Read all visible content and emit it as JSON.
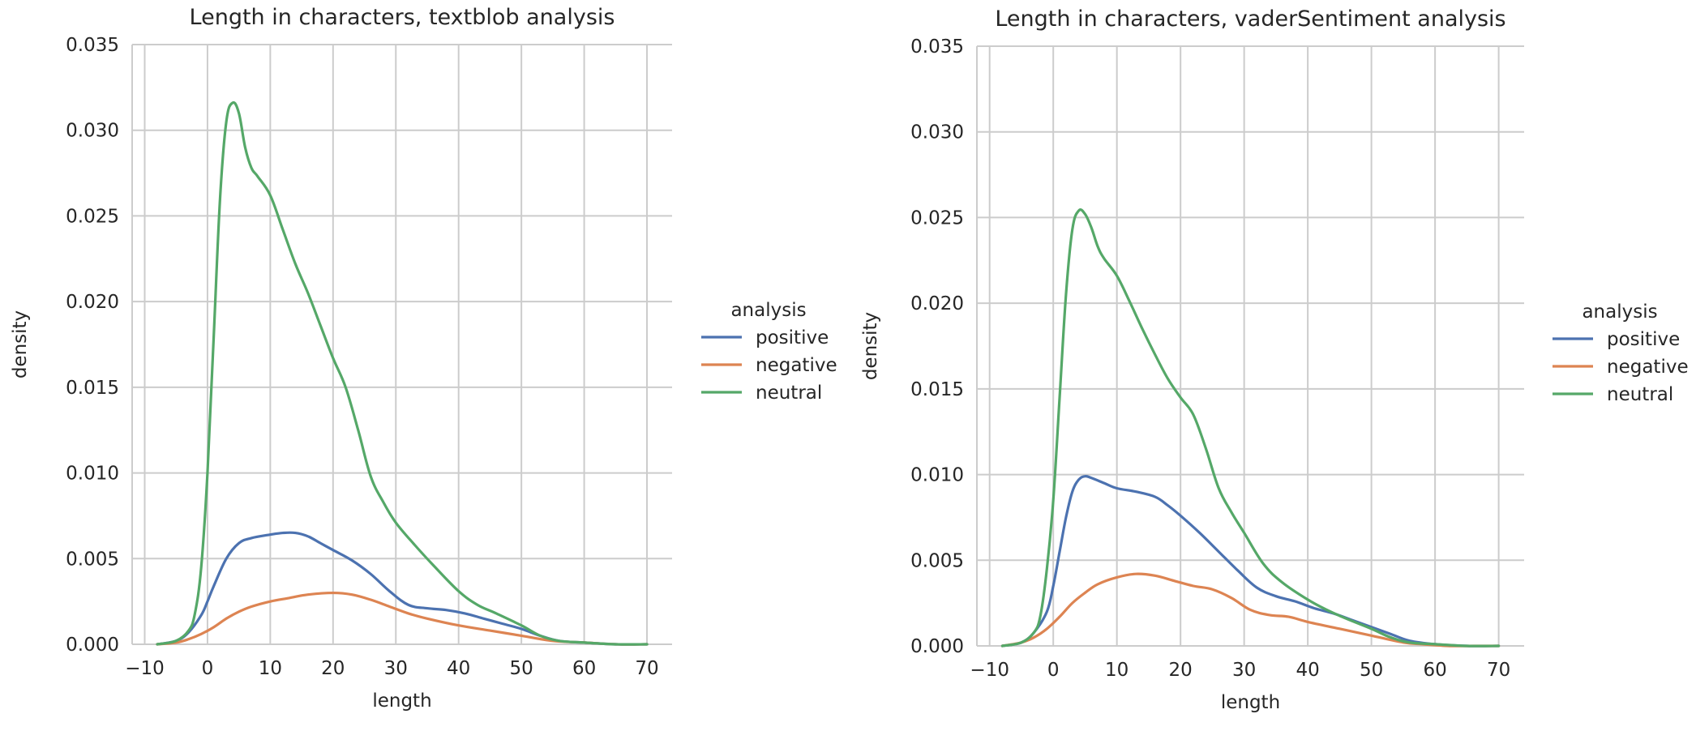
{
  "chart_data": [
    {
      "type": "line",
      "title": "Length in characters, textblob analysis",
      "xlabel": "length",
      "ylabel": "density",
      "xlim": [
        -12,
        74
      ],
      "ylim": [
        0,
        0.035
      ],
      "xticks": [
        "−10",
        "0",
        "10",
        "20",
        "30",
        "40",
        "50",
        "60",
        "70"
      ],
      "xtick_values": [
        -10,
        0,
        10,
        20,
        30,
        40,
        50,
        60,
        70
      ],
      "yticks": [
        "0.000",
        "0.005",
        "0.010",
        "0.015",
        "0.020",
        "0.025",
        "0.030",
        "0.035"
      ],
      "ytick_values": [
        0,
        0.005,
        0.01,
        0.015,
        0.02,
        0.025,
        0.03,
        0.035
      ],
      "grid": true,
      "legend": {
        "title": "analysis",
        "placement": "right"
      },
      "series": [
        {
          "name": "positive",
          "color": "#4c72b0",
          "x": [
            -8,
            -5,
            -3,
            -1,
            0,
            1,
            3,
            5,
            7,
            10,
            12,
            14,
            16,
            18,
            20,
            23,
            26,
            29,
            32,
            35,
            38,
            41,
            44,
            47,
            50,
            53,
            56,
            60,
            65,
            70
          ],
          "y": [
            0,
            0.0002,
            0.0007,
            0.0017,
            0.0025,
            0.0034,
            0.005,
            0.0059,
            0.0062,
            0.0064,
            0.0065,
            0.0065,
            0.0063,
            0.0059,
            0.0055,
            0.0049,
            0.0041,
            0.0031,
            0.0023,
            0.0021,
            0.002,
            0.0018,
            0.0015,
            0.0012,
            0.0009,
            0.0005,
            0.0002,
            0.0001,
            0,
            0
          ]
        },
        {
          "name": "negative",
          "color": "#dd8452",
          "x": [
            -8,
            -5,
            -3,
            -1,
            1,
            3,
            5,
            7,
            10,
            13,
            16,
            20,
            23,
            26,
            29,
            32,
            35,
            40,
            45,
            50,
            55,
            60,
            65,
            70
          ],
          "y": [
            0,
            0.0001,
            0.0003,
            0.0006,
            0.001,
            0.0015,
            0.0019,
            0.0022,
            0.0025,
            0.0027,
            0.0029,
            0.003,
            0.0029,
            0.0026,
            0.0022,
            0.0018,
            0.0015,
            0.0011,
            0.0008,
            0.0005,
            0.0002,
            0.0001,
            0,
            0
          ]
        },
        {
          "name": "neutral",
          "color": "#55a868",
          "x": [
            -8,
            -5,
            -3,
            -2,
            -1,
            0,
            1,
            2,
            3,
            4,
            5,
            6,
            7,
            8,
            10,
            12,
            14,
            16,
            18,
            20,
            22,
            24,
            26,
            28,
            30,
            33,
            36,
            40,
            43,
            46,
            50,
            53,
            56,
            60,
            65,
            70
          ],
          "y": [
            0,
            0.0002,
            0.0008,
            0.0018,
            0.0045,
            0.01,
            0.018,
            0.026,
            0.0305,
            0.0316,
            0.031,
            0.029,
            0.0278,
            0.0273,
            0.0262,
            0.0242,
            0.0222,
            0.0205,
            0.0186,
            0.0167,
            0.015,
            0.0125,
            0.0098,
            0.0083,
            0.0071,
            0.0058,
            0.0046,
            0.0031,
            0.0023,
            0.0018,
            0.0011,
            0.0005,
            0.0002,
            0.0001,
            0,
            0
          ]
        }
      ]
    },
    {
      "type": "line",
      "title": "Length in characters, vaderSentiment analysis",
      "xlabel": "length",
      "ylabel": "density",
      "xlim": [
        -12,
        74
      ],
      "ylim": [
        0,
        0.035
      ],
      "xticks": [
        "−10",
        "0",
        "10",
        "20",
        "30",
        "40",
        "50",
        "60",
        "70"
      ],
      "xtick_values": [
        -10,
        0,
        10,
        20,
        30,
        40,
        50,
        60,
        70
      ],
      "yticks": [
        "0.000",
        "0.005",
        "0.010",
        "0.015",
        "0.020",
        "0.025",
        "0.030",
        "0.035"
      ],
      "ytick_values": [
        0,
        0.005,
        0.01,
        0.015,
        0.02,
        0.025,
        0.03,
        0.035
      ],
      "grid": true,
      "legend": {
        "title": "analysis",
        "placement": "right"
      },
      "series": [
        {
          "name": "positive",
          "color": "#4c72b0",
          "x": [
            -8,
            -5,
            -3,
            -1,
            0,
            1,
            2,
            3,
            4,
            5,
            6,
            8,
            10,
            13,
            16,
            18,
            20,
            23,
            26,
            29,
            32,
            35,
            38,
            41,
            44,
            47,
            50,
            53,
            56,
            60,
            65,
            70
          ],
          "y": [
            0,
            0.0002,
            0.0008,
            0.002,
            0.0035,
            0.0055,
            0.0075,
            0.009,
            0.0097,
            0.0099,
            0.0098,
            0.0095,
            0.0092,
            0.009,
            0.0087,
            0.0082,
            0.0076,
            0.0066,
            0.0055,
            0.0044,
            0.0034,
            0.0029,
            0.0026,
            0.0022,
            0.0019,
            0.0015,
            0.0011,
            0.0007,
            0.0003,
            0.0001,
            0,
            0
          ]
        },
        {
          "name": "negative",
          "color": "#dd8452",
          "x": [
            -8,
            -5,
            -3,
            -1,
            1,
            3,
            5,
            7,
            10,
            13,
            16,
            19,
            22,
            25,
            28,
            31,
            34,
            37,
            40,
            45,
            50,
            55,
            58,
            62,
            66,
            70
          ],
          "y": [
            0,
            0.0002,
            0.0005,
            0.001,
            0.0017,
            0.0025,
            0.0031,
            0.0036,
            0.004,
            0.0042,
            0.0041,
            0.0038,
            0.0035,
            0.0033,
            0.0028,
            0.0021,
            0.0018,
            0.0017,
            0.0014,
            0.001,
            0.0006,
            0.0002,
            0.0001,
            0,
            0,
            0
          ]
        },
        {
          "name": "neutral",
          "color": "#55a868",
          "x": [
            -8,
            -5,
            -3,
            -2,
            -1,
            0,
            1,
            2,
            3,
            4,
            5,
            6,
            7,
            8,
            10,
            12,
            14,
            16,
            18,
            20,
            22,
            24,
            26,
            28,
            30,
            33,
            36,
            40,
            43,
            46,
            50,
            53,
            56,
            60,
            65,
            70
          ],
          "y": [
            0,
            0.0002,
            0.0008,
            0.0018,
            0.0045,
            0.0085,
            0.0145,
            0.0205,
            0.0243,
            0.0254,
            0.0252,
            0.0244,
            0.0233,
            0.0226,
            0.0216,
            0.0201,
            0.0185,
            0.017,
            0.0156,
            0.0145,
            0.0135,
            0.0115,
            0.0092,
            0.0078,
            0.0066,
            0.0048,
            0.0037,
            0.0027,
            0.0021,
            0.0016,
            0.001,
            0.0005,
            0.0002,
            0.0001,
            0,
            0
          ]
        }
      ]
    }
  ]
}
